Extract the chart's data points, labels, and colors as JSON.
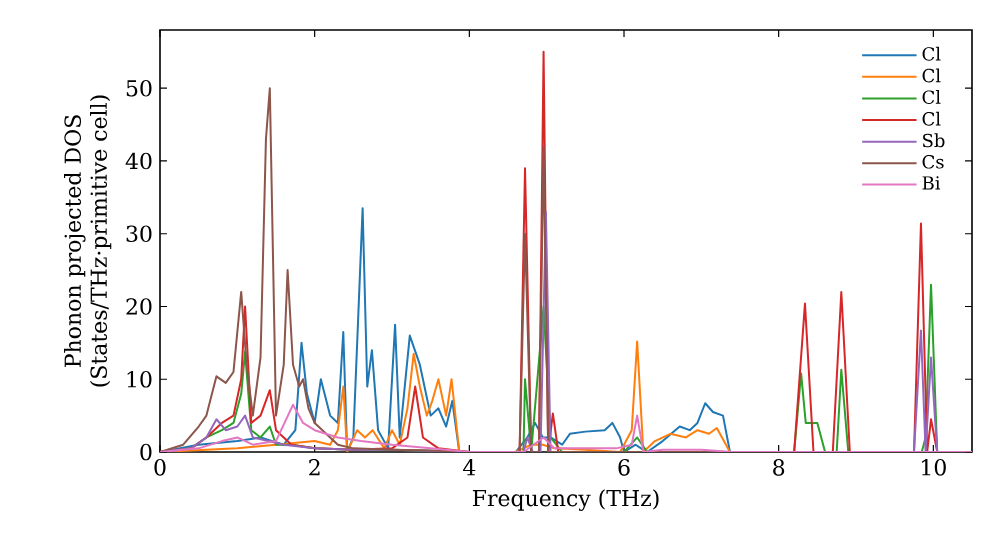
{
  "chart_data": {
    "type": "line",
    "xlabel": "Frequency (THz)",
    "ylabel": "Phonon projected DOS\n(States/THz·primitive cell)",
    "xlim": [
      0,
      10.5
    ],
    "ylim": [
      0,
      58
    ],
    "xticks": [
      0,
      2,
      4,
      6,
      8,
      10
    ],
    "yticks": [
      0,
      10,
      20,
      30,
      40,
      50
    ],
    "legend": "top right",
    "grid": false,
    "marker": "none",
    "line_style": "solid",
    "series": [
      {
        "name": "Cl",
        "color": "#1f77b4",
        "x": [
          0,
          0.5,
          1.0,
          1.3,
          1.6,
          1.75,
          1.83,
          1.9,
          2.0,
          2.08,
          2.2,
          2.3,
          2.37,
          2.42,
          2.5,
          2.62,
          2.68,
          2.74,
          2.82,
          2.95,
          3.04,
          3.1,
          3.23,
          3.36,
          3.5,
          3.6,
          3.7,
          3.78,
          3.87,
          4.6,
          4.75,
          4.85,
          4.95,
          5.05,
          5.2,
          5.3,
          5.5,
          5.75,
          5.85,
          5.95,
          6.0,
          6.15,
          6.22,
          6.3,
          6.5,
          6.72,
          6.85,
          6.95,
          7.05,
          7.15,
          7.28,
          7.37,
          10.5
        ],
        "values": [
          0,
          1,
          1.5,
          2,
          1,
          3,
          15,
          8,
          4,
          10,
          5,
          4,
          16.5,
          0,
          2,
          33.5,
          9,
          14,
          3,
          0.5,
          17.5,
          2,
          16,
          12,
          5,
          6,
          3.5,
          7,
          0,
          0,
          2,
          4,
          2,
          2,
          1,
          2.5,
          2.8,
          3,
          4,
          2,
          0,
          1,
          0.5,
          0,
          1.5,
          3.5,
          3,
          4,
          6.7,
          5.5,
          5,
          0,
          0
        ]
      },
      {
        "name": "Cl",
        "color": "#ff7f0e",
        "x": [
          0,
          1,
          1.5,
          2,
          2.2,
          2.3,
          2.37,
          2.42,
          2.55,
          2.65,
          2.75,
          2.9,
          3.0,
          3.1,
          3.2,
          3.28,
          3.36,
          3.45,
          3.52,
          3.6,
          3.7,
          3.77,
          3.87,
          4.6,
          4.8,
          4.95,
          5.1,
          5.5,
          5.95,
          6.1,
          6.17,
          6.25,
          6.4,
          6.6,
          6.8,
          6.95,
          7.1,
          7.2,
          7.37,
          10.5
        ],
        "values": [
          0,
          0.5,
          1,
          1.5,
          1,
          3,
          9,
          0,
          3,
          2,
          3,
          0.5,
          3,
          1,
          6,
          13.5,
          9,
          5,
          7,
          10,
          5,
          10,
          0,
          0,
          1,
          1,
          0.5,
          0.3,
          0,
          3,
          15.2,
          0,
          1.5,
          2.5,
          2,
          3,
          2.5,
          3.3,
          0,
          0
        ]
      },
      {
        "name": "Cl",
        "color": "#2ca02c",
        "x": [
          0,
          0.4,
          0.6,
          0.8,
          0.95,
          1.05,
          1.1,
          1.18,
          1.3,
          1.42,
          1.5,
          1.7,
          2.0,
          2.5,
          3.0,
          4.0,
          4.7,
          4.72,
          4.8,
          4.96,
          5.05,
          5.2,
          6.0,
          6.17,
          6.3,
          8.2,
          8.29,
          8.35,
          8.5,
          8.6,
          8.75,
          8.81,
          8.9,
          9.85,
          9.9,
          9.97,
          10.05,
          10.5
        ],
        "values": [
          0,
          0.5,
          2,
          3,
          4,
          8,
          13.8,
          3,
          2,
          3.5,
          1,
          1,
          0.5,
          0.3,
          0.3,
          0,
          0,
          10,
          0,
          20,
          2,
          0,
          0,
          2,
          0,
          0,
          10.8,
          4,
          4,
          0,
          0,
          11.3,
          0,
          0,
          2,
          23,
          0,
          0
        ]
      },
      {
        "name": "Cl",
        "color": "#d62728",
        "x": [
          0,
          0.4,
          0.6,
          0.8,
          0.95,
          1.05,
          1.1,
          1.18,
          1.3,
          1.42,
          1.5,
          1.7,
          2.0,
          2.5,
          3.0,
          3.2,
          3.3,
          3.4,
          3.6,
          4.0,
          4.65,
          4.72,
          4.8,
          4.9,
          4.96,
          5.02,
          5.08,
          5.15,
          6.0,
          8.2,
          8.34,
          8.45,
          8.7,
          8.81,
          8.92,
          9.75,
          9.84,
          9.92,
          9.97,
          10.05,
          10.5
        ],
        "values": [
          0,
          0.5,
          2,
          4,
          5,
          10,
          20,
          4,
          5,
          8.5,
          3,
          1,
          0.5,
          0.3,
          0.5,
          2,
          9,
          2,
          0.5,
          0,
          0,
          39,
          0,
          0,
          55,
          0,
          5.3,
          0,
          0,
          0,
          20.4,
          0,
          0,
          22,
          0,
          0,
          31.4,
          0,
          4.5,
          0,
          0
        ]
      },
      {
        "name": "Sb",
        "color": "#9467bd",
        "x": [
          0,
          0.4,
          0.6,
          0.73,
          0.85,
          1.0,
          1.1,
          1.2,
          1.4,
          1.6,
          2.0,
          2.5,
          3.0,
          4.0,
          4.7,
          4.75,
          4.82,
          4.92,
          4.99,
          5.05,
          5.1,
          6.0,
          9.75,
          9.84,
          9.9,
          9.97,
          10.05,
          10.5
        ],
        "values": [
          0,
          0.5,
          2,
          4.5,
          3,
          3.5,
          5,
          2,
          1.5,
          1,
          0.5,
          0.3,
          0.3,
          0,
          0,
          2,
          0,
          0,
          33,
          0,
          0,
          0,
          0,
          16.7,
          0,
          13,
          0,
          0
        ]
      },
      {
        "name": "Cs",
        "color": "#8c564b",
        "x": [
          0,
          0.3,
          0.5,
          0.6,
          0.73,
          0.85,
          0.95,
          1.05,
          1.12,
          1.2,
          1.3,
          1.37,
          1.42,
          1.5,
          1.6,
          1.65,
          1.72,
          1.8,
          1.85,
          1.92,
          2.0,
          2.1,
          2.3,
          2.5,
          3.0,
          3.5,
          4.0,
          4.65,
          4.72,
          4.8,
          4.9,
          4.96,
          5.02,
          5.1,
          10.5
        ],
        "values": [
          0,
          1,
          3.5,
          5,
          10.4,
          9.5,
          11,
          22,
          12,
          5,
          13,
          43,
          50,
          5,
          12,
          25,
          12,
          9,
          10,
          6,
          4,
          3,
          1,
          0.5,
          0.3,
          0.2,
          0,
          0,
          30,
          0,
          0,
          42,
          0,
          0,
          0
        ]
      },
      {
        "name": "Bi",
        "color": "#e377c2",
        "x": [
          0,
          0.5,
          0.8,
          1.0,
          1.2,
          1.5,
          1.72,
          1.85,
          2.0,
          2.3,
          2.6,
          3.0,
          3.5,
          4.0,
          4.7,
          4.96,
          5.1,
          5.5,
          5.9,
          6.1,
          6.17,
          6.25,
          6.5,
          7.0,
          7.4,
          10.5
        ],
        "values": [
          0,
          0.5,
          1.5,
          2,
          1,
          1.5,
          6.5,
          4,
          3,
          2,
          1.5,
          1,
          0.5,
          0,
          0,
          2,
          0.5,
          0.5,
          0.5,
          1,
          5,
          0,
          0.3,
          0.3,
          0,
          0
        ]
      }
    ]
  }
}
